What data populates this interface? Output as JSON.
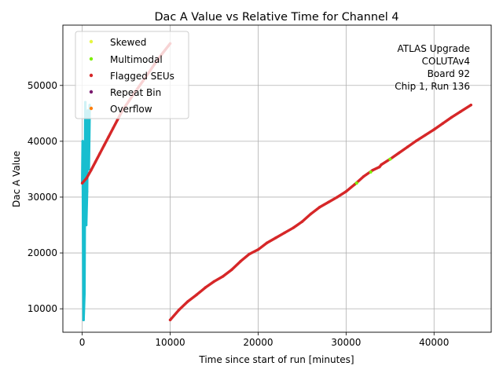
{
  "chart_data": {
    "type": "scatter",
    "title": "Dac A Value vs Relative Time for Channel 4",
    "xlabel": "Time since start of run [minutes]",
    "ylabel": "Dac A Value",
    "xlim": [
      -2200,
      46500
    ],
    "ylim": [
      5800,
      60800
    ],
    "x_ticks": [
      0,
      10000,
      20000,
      30000,
      40000
    ],
    "x_tick_labels": [
      "0",
      "10000",
      "20000",
      "30000",
      "40000"
    ],
    "y_ticks": [
      10000,
      20000,
      30000,
      40000,
      50000
    ],
    "y_tick_labels": [
      "10000",
      "20000",
      "30000",
      "40000",
      "50000"
    ],
    "grid": true,
    "legend_position": "top-left",
    "annotation_lines": [
      "ATLAS Upgrade",
      "COLUTAv4",
      "Board 92",
      "Chip 1, Run 136"
    ],
    "legend": [
      {
        "name": "Skewed",
        "color": "#e6f542"
      },
      {
        "name": "Multimodal",
        "color": "#7cf000"
      },
      {
        "name": "Flagged SEUs",
        "color": "#d62728"
      },
      {
        "name": "Repeat Bin",
        "color": "#7a1a6e"
      },
      {
        "name": "Overflow",
        "color": "#ff7f0e"
      }
    ],
    "series": [
      {
        "name": "Flagged SEUs",
        "color": "#d62728",
        "x": [
          0,
          500,
          1000,
          1500,
          2000,
          2500,
          3000,
          3500,
          4000,
          4500,
          5000,
          6000,
          7000,
          8000,
          9000,
          10000,
          10000,
          11000,
          12000,
          13000,
          14000,
          15000,
          16000,
          17000,
          18000,
          19000,
          20000,
          21000,
          22000,
          23000,
          24000,
          25000,
          26000,
          27000,
          28000,
          29000,
          30000,
          31000,
          32000,
          33000,
          33800,
          34000,
          35000,
          36000,
          37000,
          38000,
          39000,
          40000,
          41000,
          42000,
          43000,
          44200
        ],
        "y": [
          32500,
          33400,
          34800,
          36300,
          37800,
          39300,
          40800,
          42300,
          43800,
          45300,
          46500,
          48800,
          51000,
          53300,
          55500,
          57500,
          8000,
          9800,
          11300,
          12500,
          13800,
          14900,
          15800,
          17000,
          18500,
          19800,
          20600,
          21800,
          22700,
          23600,
          24500,
          25600,
          27000,
          28200,
          29100,
          30000,
          31000,
          32300,
          33700,
          34800,
          35400,
          35800,
          36800,
          37900,
          39000,
          40100,
          41100,
          42100,
          43200,
          44300,
          45300,
          46500
        ]
      },
      {
        "name": "Multimodal",
        "color": "#7cf000",
        "x": [
          31200,
          32800,
          35000
        ],
        "y": [
          32500,
          34500,
          36800
        ]
      },
      {
        "name": "Skewed",
        "color": "#e6f542",
        "x": [],
        "y": []
      },
      {
        "name": "Repeat Bin",
        "color": "#7a1a6e",
        "x": [],
        "y": []
      },
      {
        "name": "Overflow",
        "color": "#ff7f0e",
        "x": [],
        "y": []
      },
      {
        "name": "",
        "color": "#17becf",
        "x": [
          0,
          50,
          150,
          250,
          350,
          450,
          550,
          650,
          750,
          850
        ],
        "y": [
          32500,
          40000,
          8000,
          12700,
          47000,
          25000,
          31000,
          45500,
          35000,
          46500
        ]
      }
    ]
  }
}
